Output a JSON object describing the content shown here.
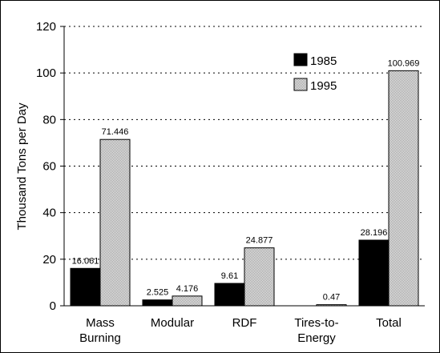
{
  "chart_data": {
    "type": "bar",
    "ylabel": "Thousand Tons per Day",
    "ylim": [
      0,
      120
    ],
    "yticks": [
      0,
      20,
      40,
      60,
      80,
      100,
      120
    ],
    "grid": true,
    "legend_position": "top-right",
    "categories": [
      [
        "Mass",
        "Burning"
      ],
      [
        "Modular"
      ],
      [
        "RDF"
      ],
      [
        "Tires-to-",
        "Energy"
      ],
      [
        "Total"
      ]
    ],
    "series": [
      {
        "name": "1985",
        "color": "#000000",
        "values": [
          16.061,
          2.525,
          9.61,
          null,
          28.196
        ],
        "labels": [
          "16.061",
          "2.525",
          "9.61",
          "",
          "28.196"
        ]
      },
      {
        "name": "1995",
        "color": "#dcdcdc",
        "pattern": "dotted",
        "values": [
          71.446,
          4.176,
          24.877,
          0.47,
          100.969
        ],
        "labels": [
          "71.446",
          "4.176",
          "24.877",
          "0.47",
          "100.969"
        ]
      }
    ]
  }
}
